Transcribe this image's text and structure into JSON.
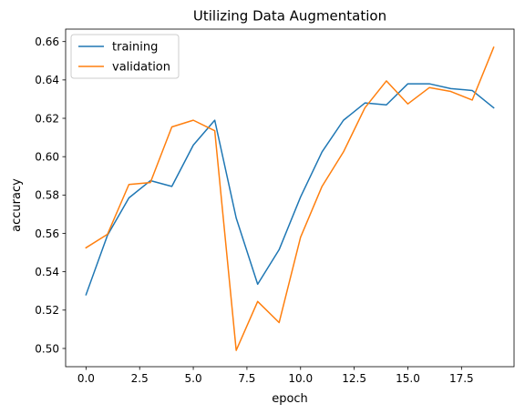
{
  "chart_data": {
    "type": "line",
    "title": "Utilizing Data Augmentation",
    "xlabel": "epoch",
    "ylabel": "accuracy",
    "xlim": [
      -0.95,
      19.95
    ],
    "ylim": [
      0.4905,
      0.6665
    ],
    "xticks": [
      0,
      2.5,
      5,
      7.5,
      10,
      12.5,
      15,
      17.5
    ],
    "xtick_labels": [
      "0.0",
      "2.5",
      "5.0",
      "7.5",
      "10.0",
      "12.5",
      "15.0",
      "17.5"
    ],
    "yticks": [
      0.5,
      0.52,
      0.54,
      0.56,
      0.58,
      0.6,
      0.62,
      0.64,
      0.66
    ],
    "ytick_labels": [
      "0.50",
      "0.52",
      "0.54",
      "0.56",
      "0.58",
      "0.60",
      "0.62",
      "0.64",
      "0.66"
    ],
    "grid": false,
    "legend_position": "top-left",
    "x": [
      0,
      1,
      2,
      3,
      4,
      5,
      6,
      7,
      8,
      9,
      10,
      11,
      12,
      13,
      14,
      15,
      16,
      17,
      18,
      19
    ],
    "series": [
      {
        "name": "training",
        "color": "#1f77b4",
        "values": [
          0.528,
          0.559,
          0.5785,
          0.5875,
          0.5845,
          0.606,
          0.619,
          0.568,
          0.5335,
          0.5515,
          0.579,
          0.6025,
          0.619,
          0.628,
          0.627,
          0.638,
          0.638,
          0.6355,
          0.6345,
          0.6255
        ]
      },
      {
        "name": "validation",
        "color": "#ff7f0e",
        "values": [
          0.5525,
          0.5595,
          0.5855,
          0.5865,
          0.6155,
          0.619,
          0.6135,
          0.499,
          0.5245,
          0.5135,
          0.558,
          0.5845,
          0.6025,
          0.6255,
          0.6395,
          0.6275,
          0.636,
          0.634,
          0.6295,
          0.657
        ]
      }
    ]
  }
}
